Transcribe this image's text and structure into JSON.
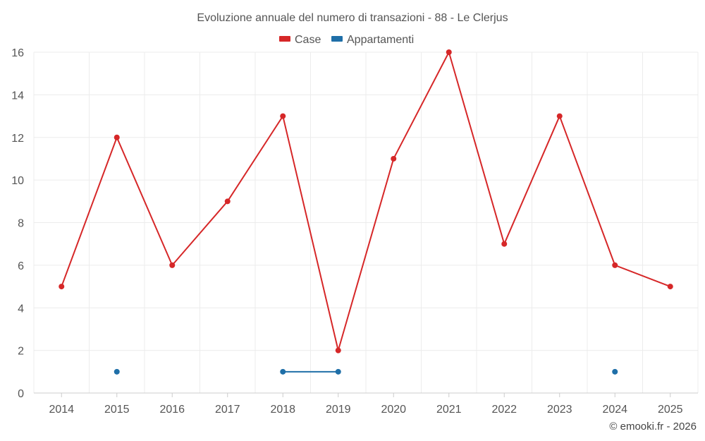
{
  "chart_data": {
    "type": "line",
    "title": "Evoluzione annuale del numero di transazioni - 88 - Le Clerjus",
    "categories": [
      "2014",
      "2015",
      "2016",
      "2017",
      "2018",
      "2019",
      "2020",
      "2021",
      "2022",
      "2023",
      "2024",
      "2025"
    ],
    "series": [
      {
        "name": "Case",
        "color": "#d62728",
        "values": [
          5,
          12,
          6,
          9,
          13,
          2,
          11,
          16,
          7,
          13,
          6,
          5
        ]
      },
      {
        "name": "Appartamenti",
        "color": "#1f6fa8",
        "values": [
          null,
          1,
          null,
          null,
          1,
          1,
          null,
          null,
          null,
          null,
          1,
          null
        ]
      }
    ],
    "ylim": [
      0,
      16
    ],
    "yticks": [
      0,
      2,
      4,
      6,
      8,
      10,
      12,
      14,
      16
    ],
    "legend_position": "top-center",
    "grid": true,
    "credit": "© emooki.fr - 2026"
  }
}
